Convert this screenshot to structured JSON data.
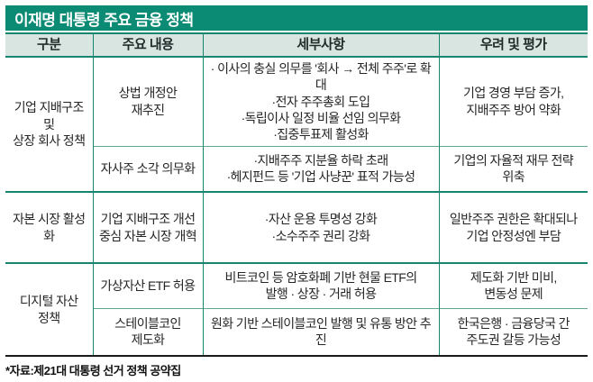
{
  "title": "이재명 대통령 주요 금융 정책",
  "colors": {
    "accent": "#0b8a74",
    "header_bg": "#d9e5e1",
    "grid": "#168671",
    "subgrid": "#63a795",
    "footer_line": "#1a1a1a"
  },
  "table": {
    "headers": [
      "구분",
      "주요 내용",
      "세부사항",
      "우려 및 평가"
    ],
    "groups": [
      {
        "category_lines": [
          "기업 지배구조 및",
          "상장 회사 정책"
        ],
        "rows": [
          {
            "main_lines": [
              "상법 개정안",
              "재추진"
            ],
            "detail_lines": [
              "· 이사의 충실 의무를 '회사 → 전체 주주'로 확대",
              "·전자 주주총회 도입",
              "·독립이사 일정 비율 선임 의무화",
              "·집중투표제 활성화"
            ],
            "concern_lines": [
              "기업 경영 부담 증가,",
              "지배주주 방어 약화"
            ]
          },
          {
            "main_lines": [
              "자사주 소각 의무화"
            ],
            "detail_lines": [
              "·지배주주 지분율 하락 초래",
              "·헤지펀드 등 '기업 사냥꾼' 표적 가능성"
            ],
            "concern_lines": [
              "기업의 자율적 재무 전략",
              "위축"
            ]
          }
        ]
      },
      {
        "category_lines": [
          "자본 시장 활성화"
        ],
        "rows": [
          {
            "main_lines": [
              "기업 지배구조 개선",
              "중심 자본 시장 개혁"
            ],
            "detail_lines": [
              "·자산 운용 투명성 강화",
              "·소수주주 권리 강화"
            ],
            "concern_lines": [
              "일반주주 권한은 확대되나",
              "기업 안정성엔 부담"
            ]
          }
        ]
      },
      {
        "category_lines": [
          "디지털 자산",
          "정책"
        ],
        "rows": [
          {
            "main_lines": [
              "가상자산 ETF 허용"
            ],
            "detail_lines": [
              "비트코인 등 암호화폐 기반 현물 ETF의",
              "발행 · 상장 · 거래 허용"
            ],
            "concern_lines": [
              "제도화 기반 미비,",
              "변동성 문제"
            ]
          },
          {
            "main_lines": [
              "스테이블코인",
              "제도화"
            ],
            "detail_lines": [
              "원화 기반 스테이블코인 발행 및 유통 방안 추진"
            ],
            "concern_lines": [
              "한국은행 · 금융당국 간",
              "주도권 갈등 가능성"
            ]
          }
        ]
      }
    ]
  },
  "footer": {
    "source": "*자료:제21대 대통령 선거 정책 공약집"
  }
}
